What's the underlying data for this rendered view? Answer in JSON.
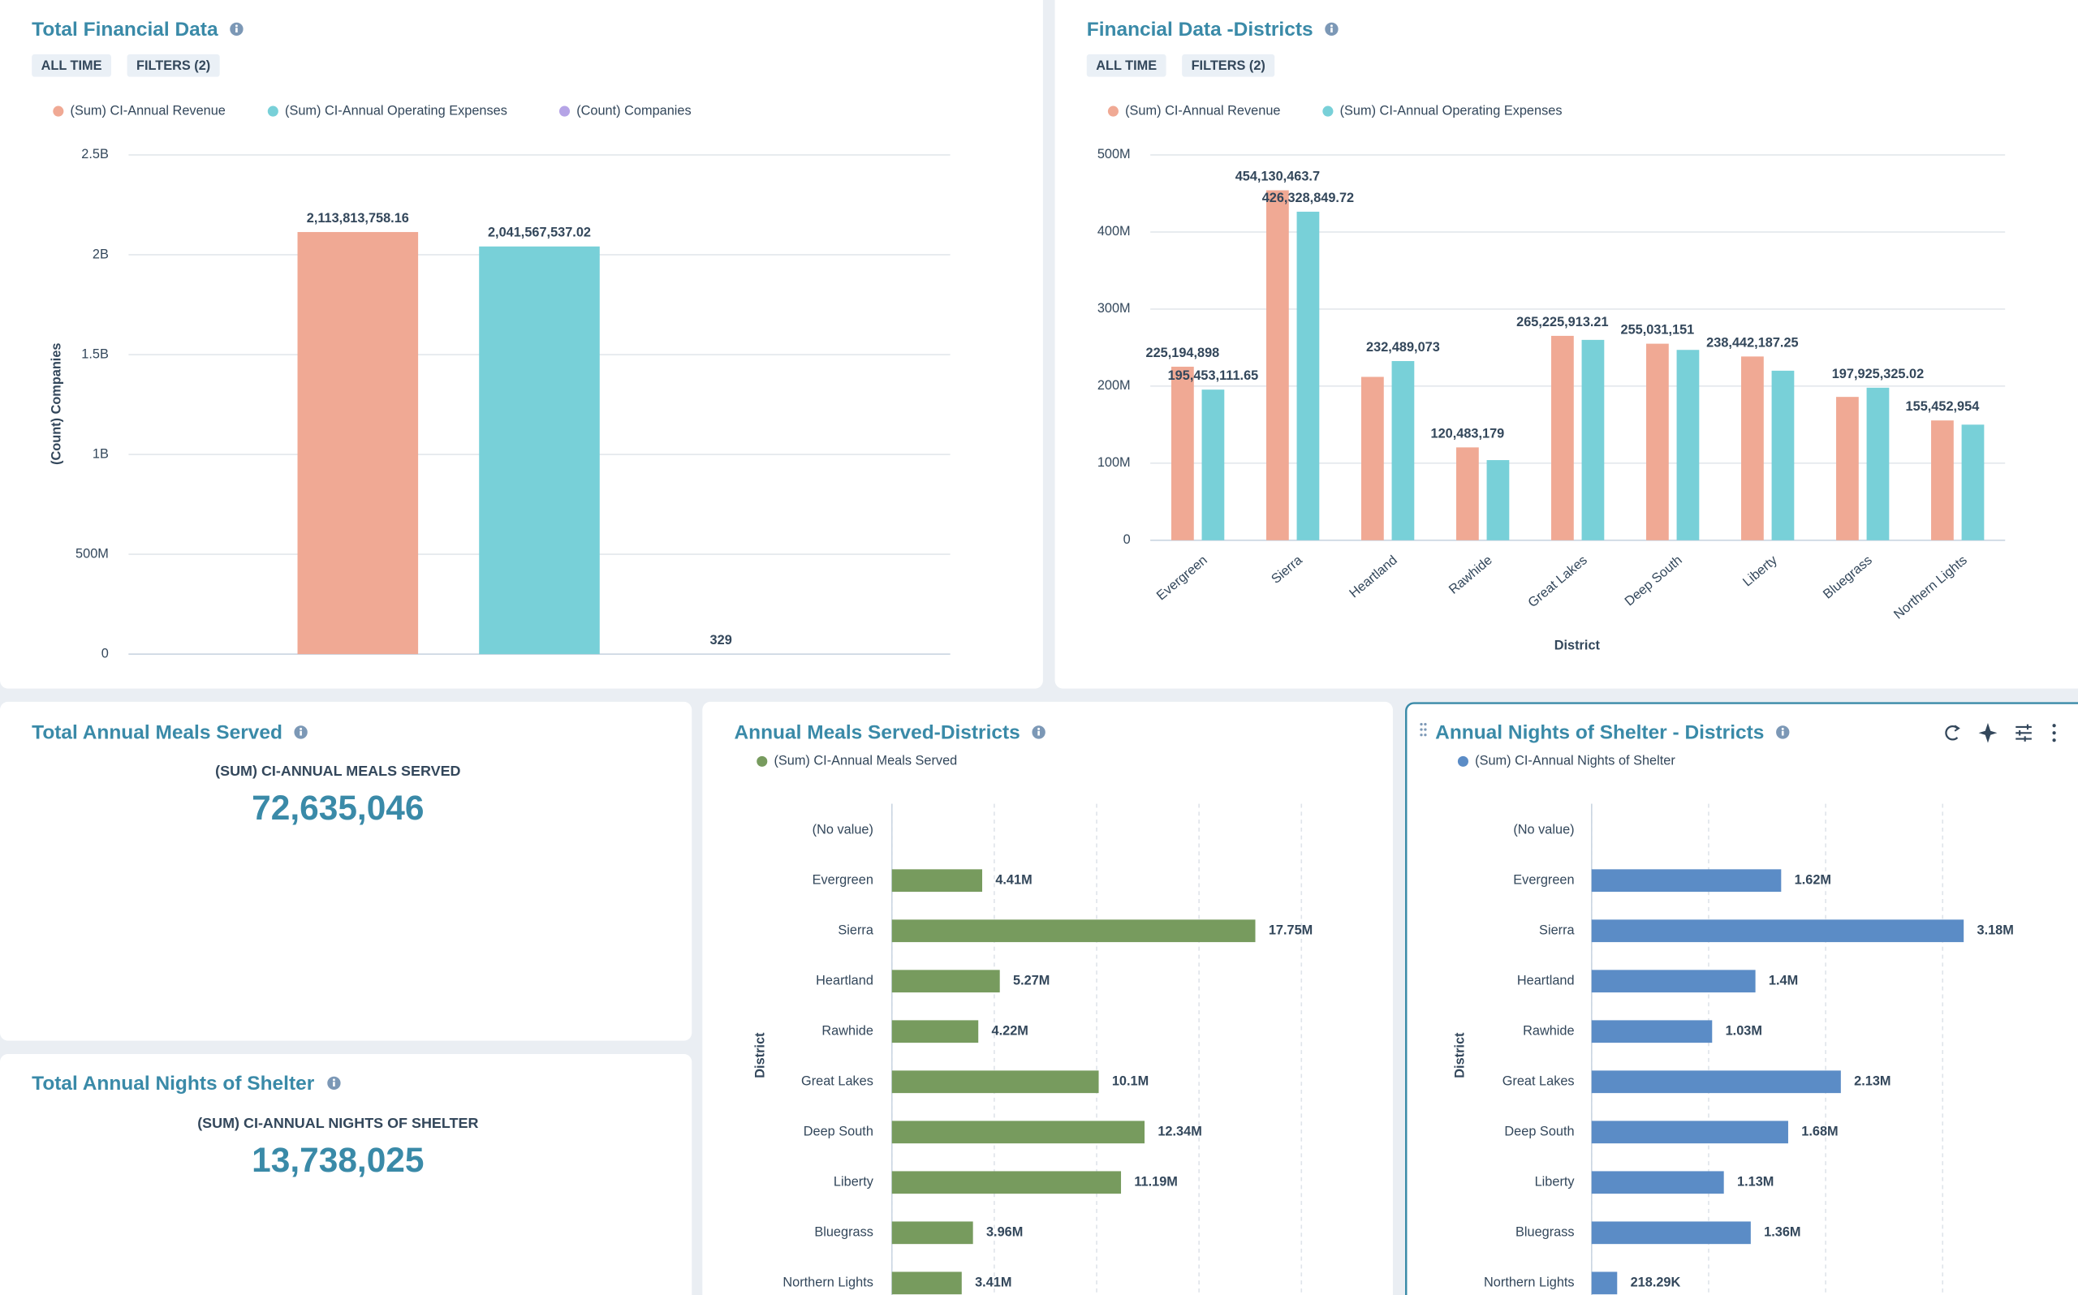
{
  "chart_data": [
    {
      "type": "bar",
      "title": "Total Financial Data",
      "chips": [
        "ALL TIME",
        "FILTERS (2)"
      ],
      "y_label": "(Count) Companies",
      "categories": [
        null
      ],
      "series": [
        {
          "name": "(Sum) CI-Annual Revenue",
          "color": "#f0a994",
          "values": [
            2113813758.16
          ],
          "value_labels": [
            "2,113,813,758.16"
          ]
        },
        {
          "name": "(Sum) CI-Annual Operating Expenses",
          "color": "#78d0d8",
          "values": [
            2041567537.02
          ],
          "value_labels": [
            "2,041,567,537.02"
          ]
        },
        {
          "name": "(Count) Companies",
          "color": "#b5a4e6",
          "values": [
            329
          ]
        }
      ],
      "ylim": [
        0,
        2500000000
      ],
      "yticks": [
        0,
        {
          "value": 500000000,
          "label": "500M"
        },
        {
          "value": 1000000000,
          "label": "1B"
        },
        {
          "value": 1500000000,
          "label": "1.5B"
        },
        {
          "value": 2000000000,
          "label": "2B"
        },
        {
          "value": 2500000000,
          "label": "2.5B"
        }
      ],
      "grid": true
    },
    {
      "type": "bar",
      "title": "Financial Data -Districts",
      "chips": [
        "ALL TIME",
        "FILTERS (2)"
      ],
      "x_label": "District",
      "categories": [
        "Evergreen",
        "Sierra",
        "Heartland",
        "Rawhide",
        "Great Lakes",
        "Deep South",
        "Liberty",
        "Bluegrass",
        "Northern Lights"
      ],
      "series": [
        {
          "name": "(Sum) CI-Annual Revenue",
          "color": "#f0a994",
          "values": [
            225194898,
            454130463.7,
            212000000,
            120483179,
            265225913.21,
            255031151,
            238442187.25,
            186000000,
            155452954
          ],
          "value_labels": [
            "225,194,898",
            "454,130,463.7",
            null,
            "120,483,179",
            "265,225,913.21",
            "255,031,151",
            "238,442,187.25",
            null,
            "155,452,954"
          ]
        },
        {
          "name": "(Sum) CI-Annual Operating Expenses",
          "color": "#78d0d8",
          "values": [
            195453111.65,
            426328849.72,
            232489073,
            104000000,
            260000000,
            247000000,
            220000000,
            197925325.02,
            150000000
          ],
          "value_labels": [
            "195,453,111.65",
            "426,328,849.72",
            "232,489,073",
            null,
            null,
            null,
            null,
            "197,925,325.02",
            null
          ]
        }
      ],
      "ylim": [
        0,
        500000000
      ],
      "yticks": [
        0,
        {
          "value": 100000000,
          "label": "100M"
        },
        {
          "value": 200000000,
          "label": "200M"
        },
        {
          "value": 300000000,
          "label": "300M"
        },
        {
          "value": 400000000,
          "label": "400M"
        },
        {
          "value": 500000000,
          "label": "500M"
        }
      ],
      "grid": true
    },
    {
      "type": "barh",
      "title": "Annual Meals Served-Districts",
      "y_label": "District",
      "categories": [
        "(No value)",
        "Evergreen",
        "Sierra",
        "Heartland",
        "Rawhide",
        "Great Lakes",
        "Deep South",
        "Liberty",
        "Bluegrass",
        "Northern Lights"
      ],
      "series": [
        {
          "name": "(Sum) CI-Annual Meals Served",
          "color": "#779b5e",
          "values": [
            null,
            4410000,
            17750000,
            5270000,
            4220000,
            10100000,
            12340000,
            11190000,
            3960000,
            3410000
          ],
          "value_labels": [
            null,
            "4.41M",
            "17.75M",
            "5.27M",
            "4.22M",
            "10.1M",
            "12.34M",
            "11.19M",
            "3.96M",
            "3.41M"
          ]
        }
      ],
      "xlim": [
        0,
        20000000
      ],
      "xticks": [
        0,
        5000000,
        10000000,
        15000000,
        20000000
      ],
      "grid": true
    },
    {
      "type": "barh",
      "title": "Annual Nights of Shelter - Districts",
      "y_label": "District",
      "categories": [
        "(No value)",
        "Evergreen",
        "Sierra",
        "Heartland",
        "Rawhide",
        "Great Lakes",
        "Deep South",
        "Liberty",
        "Bluegrass",
        "Northern Lights"
      ],
      "series": [
        {
          "name": "(Sum) CI-Annual Nights of Shelter",
          "color": "#5b8cc6",
          "values": [
            null,
            1620000,
            3180000,
            1400000,
            1030000,
            2130000,
            1680000,
            1130000,
            1360000,
            218290
          ],
          "value_labels": [
            null,
            "1.62M",
            "3.18M",
            "1.4M",
            "1.03M",
            "2.13M",
            "1.68M",
            "1.13M",
            "1.36M",
            "218.29K"
          ]
        }
      ],
      "xlim": [
        0,
        3500000
      ],
      "xticks": [
        0,
        1000000,
        2000000,
        3000000
      ],
      "grid": true
    }
  ],
  "kpis": [
    {
      "title": "Total Annual Meals Served",
      "label": "(SUM) CI-ANNUAL MEALS SERVED",
      "value": "72,635,046"
    },
    {
      "title": "Total Annual Nights of Shelter",
      "label": "(SUM) CI-ANNUAL NIGHTS OF SHELTER",
      "value": "13,738,025"
    }
  ]
}
